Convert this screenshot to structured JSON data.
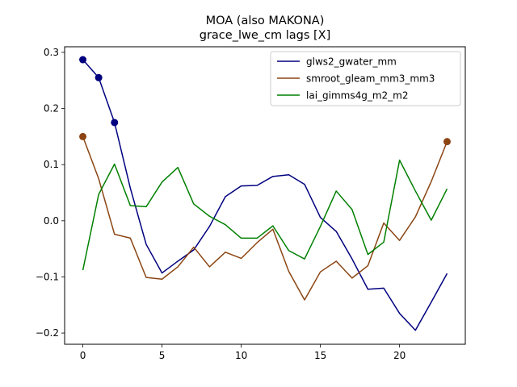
{
  "chart_data": {
    "type": "line",
    "title": "MOA (also MAKONA)",
    "subtitle": "grace_lwe_cm lags [X]",
    "xlabel": "",
    "ylabel": "",
    "xlim": [
      -1.15,
      24.15
    ],
    "ylim": [
      -0.22,
      0.31
    ],
    "xticks": [
      0,
      5,
      10,
      15,
      20
    ],
    "yticks": [
      -0.2,
      -0.1,
      0.0,
      0.1,
      0.2,
      0.3
    ],
    "ytick_labels": [
      "−0.2",
      "−0.1",
      "0.0",
      "0.1",
      "0.2",
      "0.3"
    ],
    "grid": false,
    "legend_position": "top-right",
    "x": [
      0,
      1,
      2,
      3,
      4,
      5,
      6,
      7,
      8,
      9,
      10,
      11,
      12,
      13,
      14,
      15,
      16,
      17,
      18,
      19,
      20,
      21,
      22,
      23
    ],
    "series": [
      {
        "name": "glws2_gwater_mm",
        "color": "#00007f",
        "values": [
          0.287,
          0.255,
          0.175,
          0.058,
          -0.042,
          -0.093,
          -0.072,
          -0.052,
          -0.01,
          0.043,
          0.062,
          0.063,
          0.079,
          0.082,
          0.065,
          0.006,
          -0.019,
          -0.068,
          -0.122,
          -0.12,
          -0.165,
          -0.195,
          -0.145,
          -0.094
        ],
        "markers": [
          0,
          1,
          2
        ]
      },
      {
        "name": "smroot_gleam_mm3_mm3",
        "color": "#8b4513",
        "values": [
          0.15,
          0.075,
          -0.024,
          -0.031,
          -0.101,
          -0.104,
          -0.082,
          -0.047,
          -0.082,
          -0.056,
          -0.067,
          -0.039,
          -0.015,
          -0.09,
          -0.141,
          -0.091,
          -0.072,
          -0.102,
          -0.08,
          -0.004,
          -0.035,
          0.007,
          0.07,
          0.141
        ],
        "markers": [
          0,
          23
        ]
      },
      {
        "name": "lai_gimms4g_m2_m2",
        "color": "#008000",
        "values": [
          -0.088,
          0.047,
          0.101,
          0.027,
          0.025,
          0.069,
          0.095,
          0.03,
          0.008,
          -0.007,
          -0.031,
          -0.031,
          -0.009,
          -0.053,
          -0.068,
          -0.01,
          0.053,
          0.02,
          -0.06,
          -0.038,
          0.108,
          0.053,
          0.001,
          0.057
        ],
        "markers": []
      }
    ]
  }
}
